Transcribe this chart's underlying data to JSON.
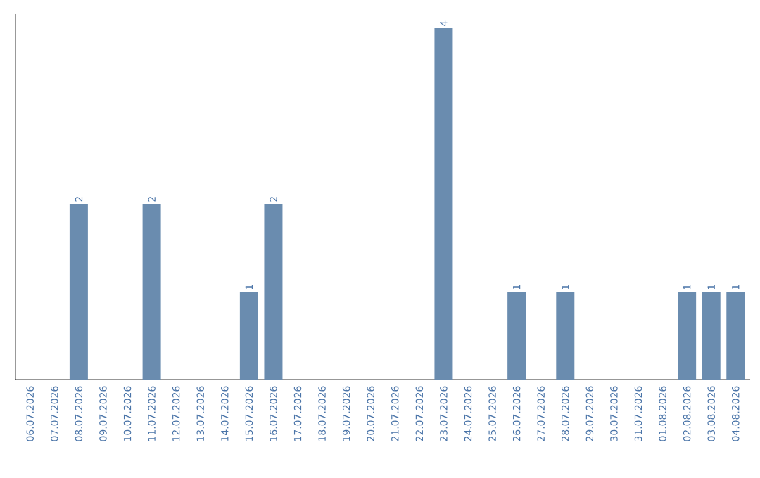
{
  "chart_data": {
    "type": "bar",
    "categories": [
      "06.07.2026",
      "07.07.2026",
      "08.07.2026",
      "09.07.2026",
      "10.07.2026",
      "11.07.2026",
      "12.07.2026",
      "13.07.2026",
      "14.07.2026",
      "15.07.2026",
      "16.07.2026",
      "17.07.2026",
      "18.07.2026",
      "19.07.2026",
      "20.07.2026",
      "21.07.2026",
      "22.07.2026",
      "23.07.2026",
      "24.07.2026",
      "25.07.2026",
      "26.07.2026",
      "27.07.2026",
      "28.07.2026",
      "29.07.2026",
      "30.07.2026",
      "31.07.2026",
      "01.08.2026",
      "02.08.2026",
      "03.08.2026",
      "04.08.2026"
    ],
    "values": [
      0,
      0,
      2,
      0,
      0,
      2,
      0,
      0,
      0,
      1,
      2,
      0,
      0,
      0,
      0,
      0,
      0,
      4,
      0,
      0,
      1,
      0,
      1,
      0,
      0,
      0,
      0,
      1,
      1,
      1
    ],
    "value_labels": [
      null,
      null,
      "2",
      null,
      null,
      "2",
      null,
      null,
      null,
      "1",
      "2",
      null,
      null,
      null,
      null,
      null,
      null,
      "4",
      null,
      null,
      "1",
      null,
      "1",
      null,
      null,
      null,
      null,
      "1",
      "1",
      "1"
    ],
    "color": "#6a8caf"
  }
}
